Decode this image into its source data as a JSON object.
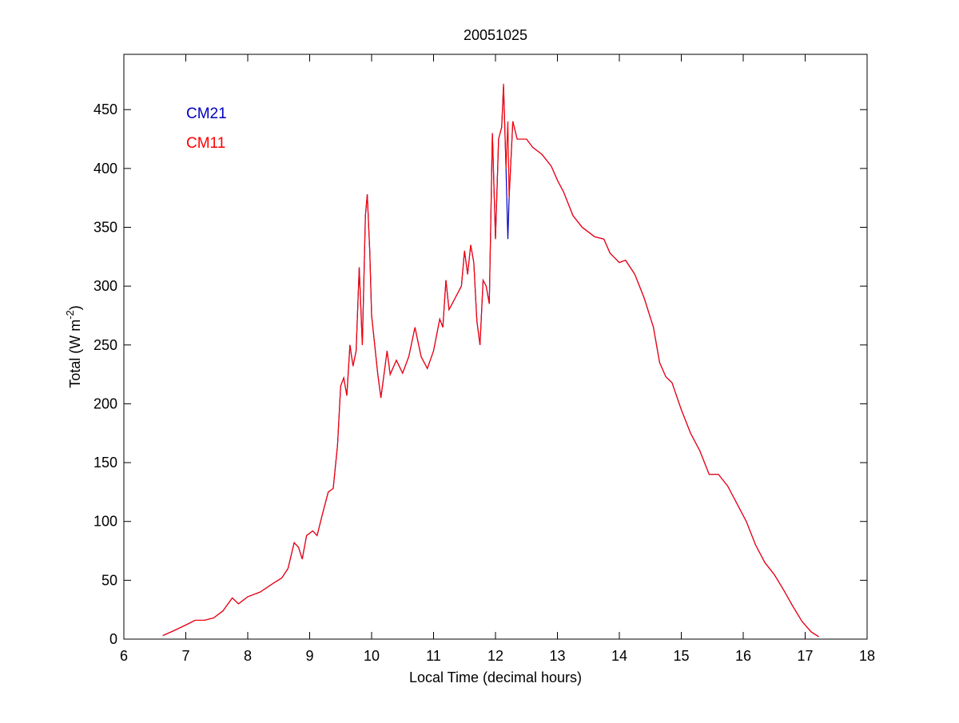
{
  "chart_data": {
    "type": "line",
    "title": "20051025",
    "xlabel": "Local Time (decimal hours)",
    "ylabel": [
      "Total (W m",
      "-2",
      ")"
    ],
    "x": [
      6.63,
      6.8,
      7.0,
      7.15,
      7.3,
      7.45,
      7.6,
      7.75,
      7.85,
      8.0,
      8.2,
      8.4,
      8.55,
      8.65,
      8.75,
      8.82,
      8.88,
      8.95,
      9.05,
      9.12,
      9.2,
      9.3,
      9.38,
      9.45,
      9.5,
      9.55,
      9.6,
      9.65,
      9.7,
      9.75,
      9.8,
      9.85,
      9.9,
      9.93,
      9.97,
      10.0,
      10.05,
      10.1,
      10.15,
      10.25,
      10.3,
      10.4,
      10.5,
      10.6,
      10.7,
      10.8,
      10.9,
      11.0,
      11.1,
      11.15,
      11.2,
      11.25,
      11.35,
      11.45,
      11.5,
      11.55,
      11.6,
      11.65,
      11.7,
      11.75,
      11.8,
      11.85,
      11.9,
      11.95,
      12.0,
      12.05,
      12.1,
      12.13,
      12.17,
      12.2,
      12.22,
      12.28,
      12.35,
      12.5,
      12.6,
      12.75,
      12.9,
      13.0,
      13.1,
      13.25,
      13.4,
      13.6,
      13.75,
      13.85,
      14.0,
      14.1,
      14.25,
      14.4,
      14.55,
      14.65,
      14.75,
      14.85,
      15.0,
      15.15,
      15.3,
      15.45,
      15.6,
      15.75,
      15.9,
      16.05,
      16.2,
      16.35,
      16.5,
      16.65,
      16.8,
      16.95,
      17.1,
      17.22
    ],
    "series": [
      {
        "name": "CM21",
        "color": "#0000c0",
        "values": [
          3,
          7,
          12,
          16,
          16,
          18,
          24,
          35,
          30,
          36,
          40,
          47,
          52,
          60,
          82,
          78,
          68,
          88,
          92,
          88,
          105,
          125,
          128,
          165,
          215,
          222,
          207,
          250,
          232,
          245,
          316,
          250,
          360,
          378,
          330,
          275,
          250,
          225,
          205,
          245,
          225,
          237,
          226,
          240,
          265,
          240,
          230,
          245,
          272,
          265,
          305,
          280,
          290,
          300,
          330,
          310,
          335,
          320,
          270,
          250,
          305,
          300,
          285,
          430,
          340,
          425,
          435,
          470,
          400,
          340,
          375,
          440,
          425,
          425,
          418,
          412,
          402,
          390,
          380,
          360,
          350,
          342,
          340,
          328,
          320,
          322,
          310,
          290,
          265,
          235,
          223,
          218,
          195,
          175,
          160,
          140,
          140,
          130,
          115,
          100,
          80,
          65,
          55,
          42,
          28,
          15,
          6,
          2
        ]
      },
      {
        "name": "CM11",
        "color": "#ff0000",
        "values": [
          3,
          7,
          12,
          16,
          16,
          18,
          24,
          35,
          30,
          36,
          40,
          47,
          52,
          60,
          82,
          78,
          68,
          88,
          92,
          88,
          105,
          125,
          128,
          165,
          215,
          222,
          207,
          250,
          232,
          245,
          316,
          250,
          360,
          378,
          330,
          275,
          250,
          225,
          205,
          245,
          225,
          237,
          226,
          240,
          265,
          240,
          230,
          245,
          272,
          265,
          305,
          280,
          290,
          300,
          330,
          310,
          335,
          320,
          270,
          250,
          305,
          300,
          285,
          430,
          340,
          425,
          435,
          472,
          400,
          440,
          375,
          440,
          425,
          425,
          418,
          412,
          402,
          390,
          380,
          360,
          350,
          342,
          340,
          328,
          320,
          322,
          310,
          290,
          265,
          235,
          223,
          218,
          195,
          175,
          160,
          140,
          140,
          130,
          115,
          100,
          80,
          65,
          55,
          42,
          28,
          15,
          6,
          2
        ]
      }
    ],
    "xlim": [
      6,
      18
    ],
    "xticks": [
      6,
      7,
      8,
      9,
      10,
      11,
      12,
      13,
      14,
      15,
      16,
      17,
      18
    ],
    "ylim": [
      0,
      497
    ],
    "yticks": [
      0,
      50,
      100,
      150,
      200,
      250,
      300,
      350,
      400,
      450
    ],
    "grid": false,
    "legend": "upper left"
  }
}
